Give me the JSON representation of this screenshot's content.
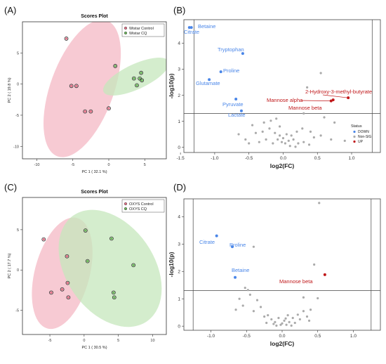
{
  "panels": {
    "A": "(A)",
    "B": "(B)",
    "C": "(C)",
    "D": "(D)"
  },
  "colors": {
    "control_fill": "#f4b8c4",
    "control_point": "#e8758c",
    "cq_fill": "#c6e7bc",
    "cq_point": "#6dbb5c",
    "down": "#4a86e8",
    "nonsig": "#aaaaaa",
    "up": "#c0181a"
  },
  "chart_data": [
    {
      "id": "A",
      "type": "scatter",
      "title": "Scores Plot",
      "xlabel": "PC 1 ( 32.1 %)",
      "ylabel": "PC 2 ( 19.8 %)",
      "xlim": [
        -12,
        8
      ],
      "ylim": [
        -12,
        10
      ],
      "xticks": [
        -10,
        -5,
        0,
        5
      ],
      "yticks": [
        -10,
        -5,
        0,
        5
      ],
      "legend_position": "top-right",
      "series": [
        {
          "name": "Wistar Control",
          "color": "control",
          "x": [
            -5.9,
            -5.2,
            -4.5,
            -3.3,
            -2.5,
            0.0
          ],
          "y": [
            7.3,
            -0.3,
            -0.3,
            -4.4,
            -4.4,
            -3.9
          ],
          "ellipse": {
            "cx": -3.7,
            "cy": -0.7,
            "rx": 4.4,
            "ry": 11.6,
            "rot": 20
          }
        },
        {
          "name": "Wistar CQ",
          "color": "cq",
          "x": [
            0.9,
            3.5,
            3.9,
            4.3,
            4.5,
            4.6
          ],
          "y": [
            2.9,
            0.9,
            -0.2,
            0.9,
            1.8,
            0.6
          ],
          "ellipse": {
            "cx": 3.8,
            "cy": 1.2,
            "rx": 5.0,
            "ry": 2.0,
            "rot": -25
          }
        }
      ]
    },
    {
      "id": "B",
      "type": "scatter",
      "xlabel": "log2(FC)",
      "ylabel": "-log10(p)",
      "xlim": [
        -1.45,
        1.42
      ],
      "ylim": [
        -0.2,
        4.9
      ],
      "xticks": [
        -1.5,
        -1.0,
        -0.5,
        0.0,
        0.5,
        1.0
      ],
      "yticks": [
        0,
        1,
        2,
        3,
        4
      ],
      "vlines": [
        -1.3,
        1.3
      ],
      "hline": 1.3,
      "legend_title": "Status",
      "legend": [
        "DOWN",
        "Non-SIG",
        "UP"
      ],
      "legend_position": "bottom-right",
      "down": [
        {
          "label": "Betaine",
          "x": -1.37,
          "y": 4.6
        },
        {
          "label": "Citrate",
          "x": -1.34,
          "y": 4.6
        },
        {
          "label": "Tryptophan",
          "x": -0.59,
          "y": 3.6
        },
        {
          "label": "Proline",
          "x": -0.91,
          "y": 2.9
        },
        {
          "label": "Glutamate",
          "x": -1.08,
          "y": 2.6
        },
        {
          "label": "Pyruvate",
          "x": -0.69,
          "y": 1.85
        },
        {
          "label": "Lactate",
          "x": -0.61,
          "y": 1.4
        }
      ],
      "up": [
        {
          "label": "2-Hydroxy-3-methyl-butyrate",
          "x": 0.95,
          "y": 1.9
        },
        {
          "label": "Mannose alpha",
          "x": 0.7,
          "y": 1.78
        },
        {
          "label": "Mannose beta",
          "x": 0.73,
          "y": 1.82
        }
      ],
      "nonsig": [
        [
          0.55,
          2.85
        ],
        [
          0.35,
          2.3
        ],
        [
          0.3,
          1.3
        ],
        [
          -0.28,
          0.95
        ],
        [
          -0.18,
          1.02
        ],
        [
          -0.1,
          1.1
        ],
        [
          -0.05,
          0.8
        ],
        [
          -0.2,
          0.72
        ],
        [
          -0.3,
          0.6
        ],
        [
          -0.12,
          0.55
        ],
        [
          0.05,
          0.5
        ],
        [
          0.12,
          0.45
        ],
        [
          0.2,
          0.6
        ],
        [
          0.28,
          0.72
        ],
        [
          0.45,
          0.38
        ],
        [
          0.55,
          0.45
        ],
        [
          0.7,
          0.3
        ],
        [
          0.9,
          0.25
        ],
        [
          0.6,
          1.15
        ],
        [
          0.75,
          0.95
        ],
        [
          -0.45,
          0.85
        ],
        [
          -0.55,
          0.3
        ],
        [
          -0.4,
          0.55
        ],
        [
          -0.35,
          0.2
        ],
        [
          -0.25,
          0.3
        ],
        [
          -0.15,
          0.15
        ],
        [
          -0.08,
          0.3
        ],
        [
          -0.02,
          0.2
        ],
        [
          0.0,
          0.35
        ],
        [
          0.03,
          0.15
        ],
        [
          0.08,
          0.25
        ],
        [
          0.1,
          0.05
        ],
        [
          0.15,
          0.3
        ],
        [
          0.22,
          0.15
        ],
        [
          0.3,
          0.2
        ],
        [
          0.38,
          0.1
        ],
        [
          -0.5,
          0.15
        ],
        [
          -0.65,
          0.5
        ],
        [
          0.4,
          0.6
        ],
        [
          0.18,
          0.02
        ],
        [
          -0.05,
          0.45
        ]
      ]
    },
    {
      "id": "C",
      "type": "scatter",
      "title": "Scores Plot",
      "xlabel": "PC 1 ( 30.5 %)",
      "ylabel": "PC 2 ( 17.7 %)",
      "xlim": [
        -9,
        12
      ],
      "ylim": [
        -8,
        9
      ],
      "xticks": [
        -5,
        0,
        5,
        10
      ],
      "yticks": [
        -5,
        0,
        5
      ],
      "legend_position": "top-right",
      "series": [
        {
          "name": "OXYS Control",
          "color": "control",
          "x": [
            -5.9,
            -4.8,
            -3.2,
            -2.5,
            -2.4,
            -2.3
          ],
          "y": [
            3.8,
            -2.8,
            -2.4,
            1.7,
            -1.6,
            -3.4
          ],
          "ellipse": {
            "cx": -3.2,
            "cy": -0.4,
            "rx": 4.0,
            "ry": 7.1,
            "rot": 15
          }
        },
        {
          "name": "OXYS CQ",
          "color": "cq",
          "x": [
            0.2,
            0.5,
            4.0,
            4.3,
            4.4,
            7.2
          ],
          "y": [
            4.9,
            1.1,
            3.9,
            -2.8,
            -3.4,
            0.6
          ],
          "ellipse": {
            "cx": 3.8,
            "cy": 0.2,
            "rx": 6.4,
            "ry": 8.0,
            "rot": -35
          }
        }
      ]
    },
    {
      "id": "D",
      "type": "scatter",
      "xlabel": "log2(FC)",
      "ylabel": "-log10(p)",
      "xlim": [
        -1.38,
        1.38
      ],
      "ylim": [
        -0.15,
        4.65
      ],
      "xticks": [
        -1.0,
        -0.5,
        0.0,
        0.5,
        1.0
      ],
      "yticks": [
        0,
        1,
        2,
        3,
        4
      ],
      "vlines": [
        -1.25,
        1.25
      ],
      "hline": 1.3,
      "down": [
        {
          "label": "Citrate",
          "x": -0.92,
          "y": 3.3
        },
        {
          "label": "Proline",
          "x": -0.7,
          "y": 2.9
        },
        {
          "label": "Betaine",
          "x": -0.66,
          "y": 1.78
        }
      ],
      "up": [
        {
          "label": "Mannose beta",
          "x": 0.6,
          "y": 1.88
        }
      ],
      "nonsig": [
        [
          0.52,
          4.5
        ],
        [
          0.45,
          2.25
        ],
        [
          -0.4,
          2.9
        ],
        [
          -0.48,
          1.32
        ],
        [
          -0.52,
          1.4
        ],
        [
          -0.45,
          1.15
        ],
        [
          -0.6,
          1.0
        ],
        [
          -0.55,
          0.75
        ],
        [
          -0.35,
          0.95
        ],
        [
          -0.3,
          0.7
        ],
        [
          -0.4,
          0.55
        ],
        [
          0.3,
          1.05
        ],
        [
          0.5,
          1.02
        ],
        [
          0.3,
          0.55
        ],
        [
          0.22,
          0.42
        ],
        [
          0.25,
          0.25
        ],
        [
          -0.65,
          0.6
        ],
        [
          -0.2,
          0.4
        ],
        [
          -0.15,
          0.25
        ],
        [
          -0.1,
          0.15
        ],
        [
          -0.05,
          0.3
        ],
        [
          0.0,
          0.1
        ],
        [
          0.03,
          0.2
        ],
        [
          0.06,
          0.05
        ],
        [
          0.1,
          0.15
        ],
        [
          0.13,
          0.02
        ],
        [
          0.15,
          0.3
        ],
        [
          -0.08,
          0.02
        ],
        [
          -0.22,
          0.12
        ],
        [
          0.35,
          0.35
        ],
        [
          0.4,
          0.6
        ],
        [
          0.18,
          0.12
        ],
        [
          -0.02,
          0.05
        ],
        [
          0.05,
          0.28
        ],
        [
          -0.25,
          0.35
        ],
        [
          0.08,
          0.4
        ],
        [
          -0.12,
          0.08
        ],
        [
          0.38,
          0.2
        ]
      ]
    }
  ]
}
